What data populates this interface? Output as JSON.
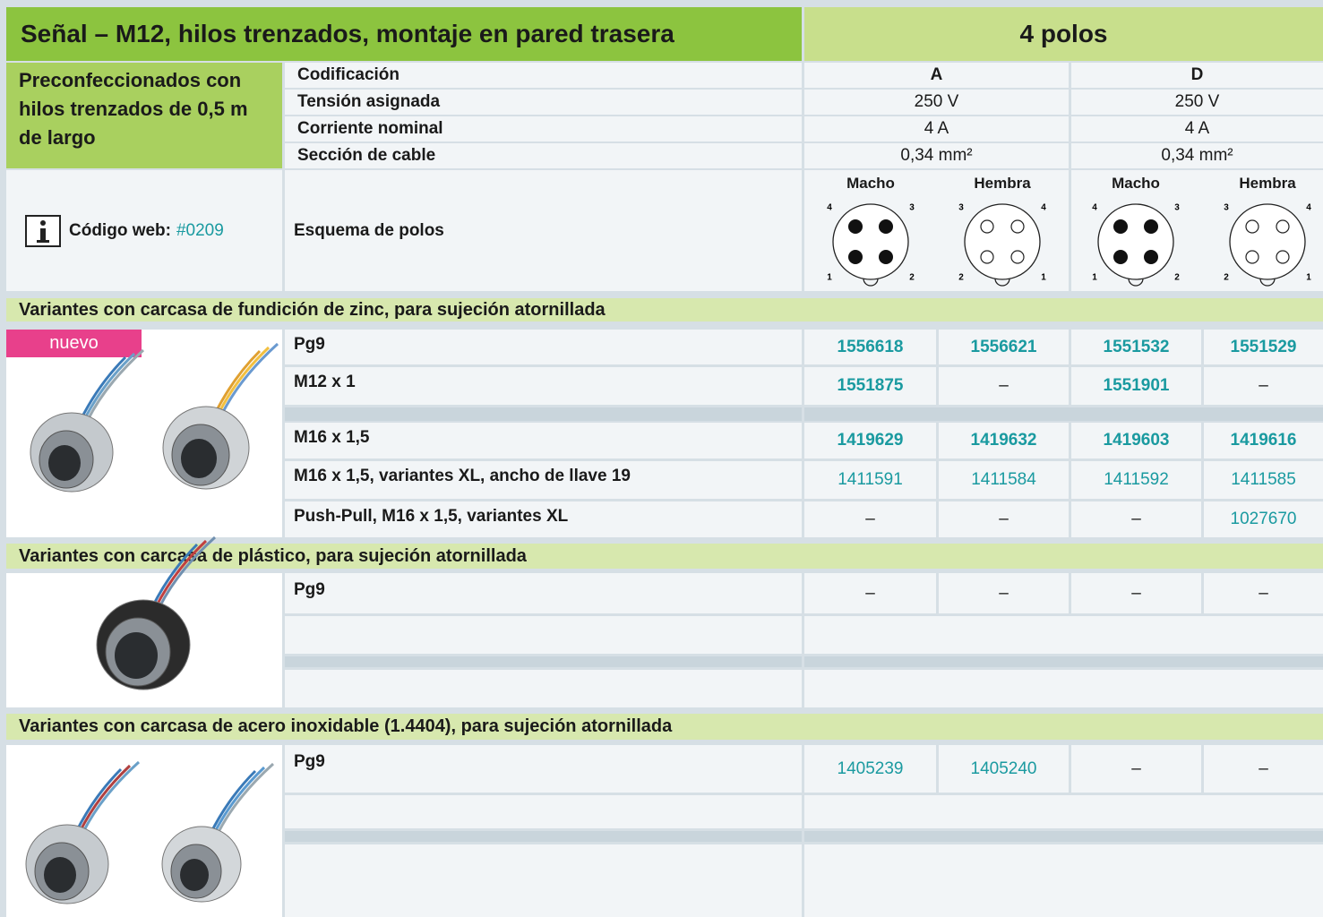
{
  "header": {
    "title": "Señal – M12, hilos trenzados, montaje en pared trasera",
    "poles": "4 polos"
  },
  "intro": "Preconfeccionados con hilos trenzados de 0,5 m de largo",
  "specs": {
    "labels": [
      "Codificación",
      "Tensión asignada",
      "Corriente nominal",
      "Sección de cable"
    ],
    "columns": [
      [
        "A",
        "250 V",
        "4 A",
        "0,34 mm²"
      ],
      [
        "D",
        "250 V",
        "4 A",
        "0,34 mm²"
      ]
    ]
  },
  "web_code": {
    "label": "Código web:",
    "code": "#0209"
  },
  "pin_scheme": {
    "label": "Esquema de polos",
    "diagrams": [
      {
        "title": "Macho",
        "pins": [
          "4",
          "3",
          "1",
          "2"
        ]
      },
      {
        "title": "Hembra",
        "pins": [
          "3",
          "4",
          "2",
          "1"
        ]
      },
      {
        "title": "Macho",
        "pins": [
          "4",
          "3",
          "1",
          "2"
        ]
      },
      {
        "title": "Hembra",
        "pins": [
          "3",
          "4",
          "2",
          "1"
        ]
      }
    ]
  },
  "badge": "nuevo",
  "sections": [
    {
      "title": "Variantes con carcasa de fundición de zinc, para sujeción atornillada",
      "rows": [
        {
          "label": "Pg9",
          "values": [
            "1556618",
            "1556621",
            "1551532",
            "1551529"
          ]
        },
        {
          "label": "M12 x 1",
          "values": [
            "1551875",
            "–",
            "1551901",
            "–"
          ]
        },
        {
          "label": "M16 x 1,5",
          "values": [
            "1419629",
            "1419632",
            "1419603",
            "1419616"
          ]
        },
        {
          "label": "M16 x 1,5, variantes XL, ancho de llave 19",
          "values": [
            "1411591",
            "1411584",
            "1411592",
            "1411585"
          ]
        },
        {
          "label": "Push-Pull, M16 x 1,5, variantes XL",
          "values": [
            "–",
            "–",
            "–",
            "1027670"
          ]
        }
      ]
    },
    {
      "title": "Variantes con carcasa de plástico, para sujeción atornillada",
      "rows": [
        {
          "label": "Pg9",
          "values": [
            "–",
            "–",
            "–",
            "–"
          ]
        }
      ]
    },
    {
      "title": "Variantes con carcasa de acero inoxidable (1.4404), para sujeción atornillada",
      "rows": [
        {
          "label": "Pg9",
          "values": [
            "1405239",
            "1405240",
            "–",
            "–"
          ]
        }
      ]
    }
  ]
}
